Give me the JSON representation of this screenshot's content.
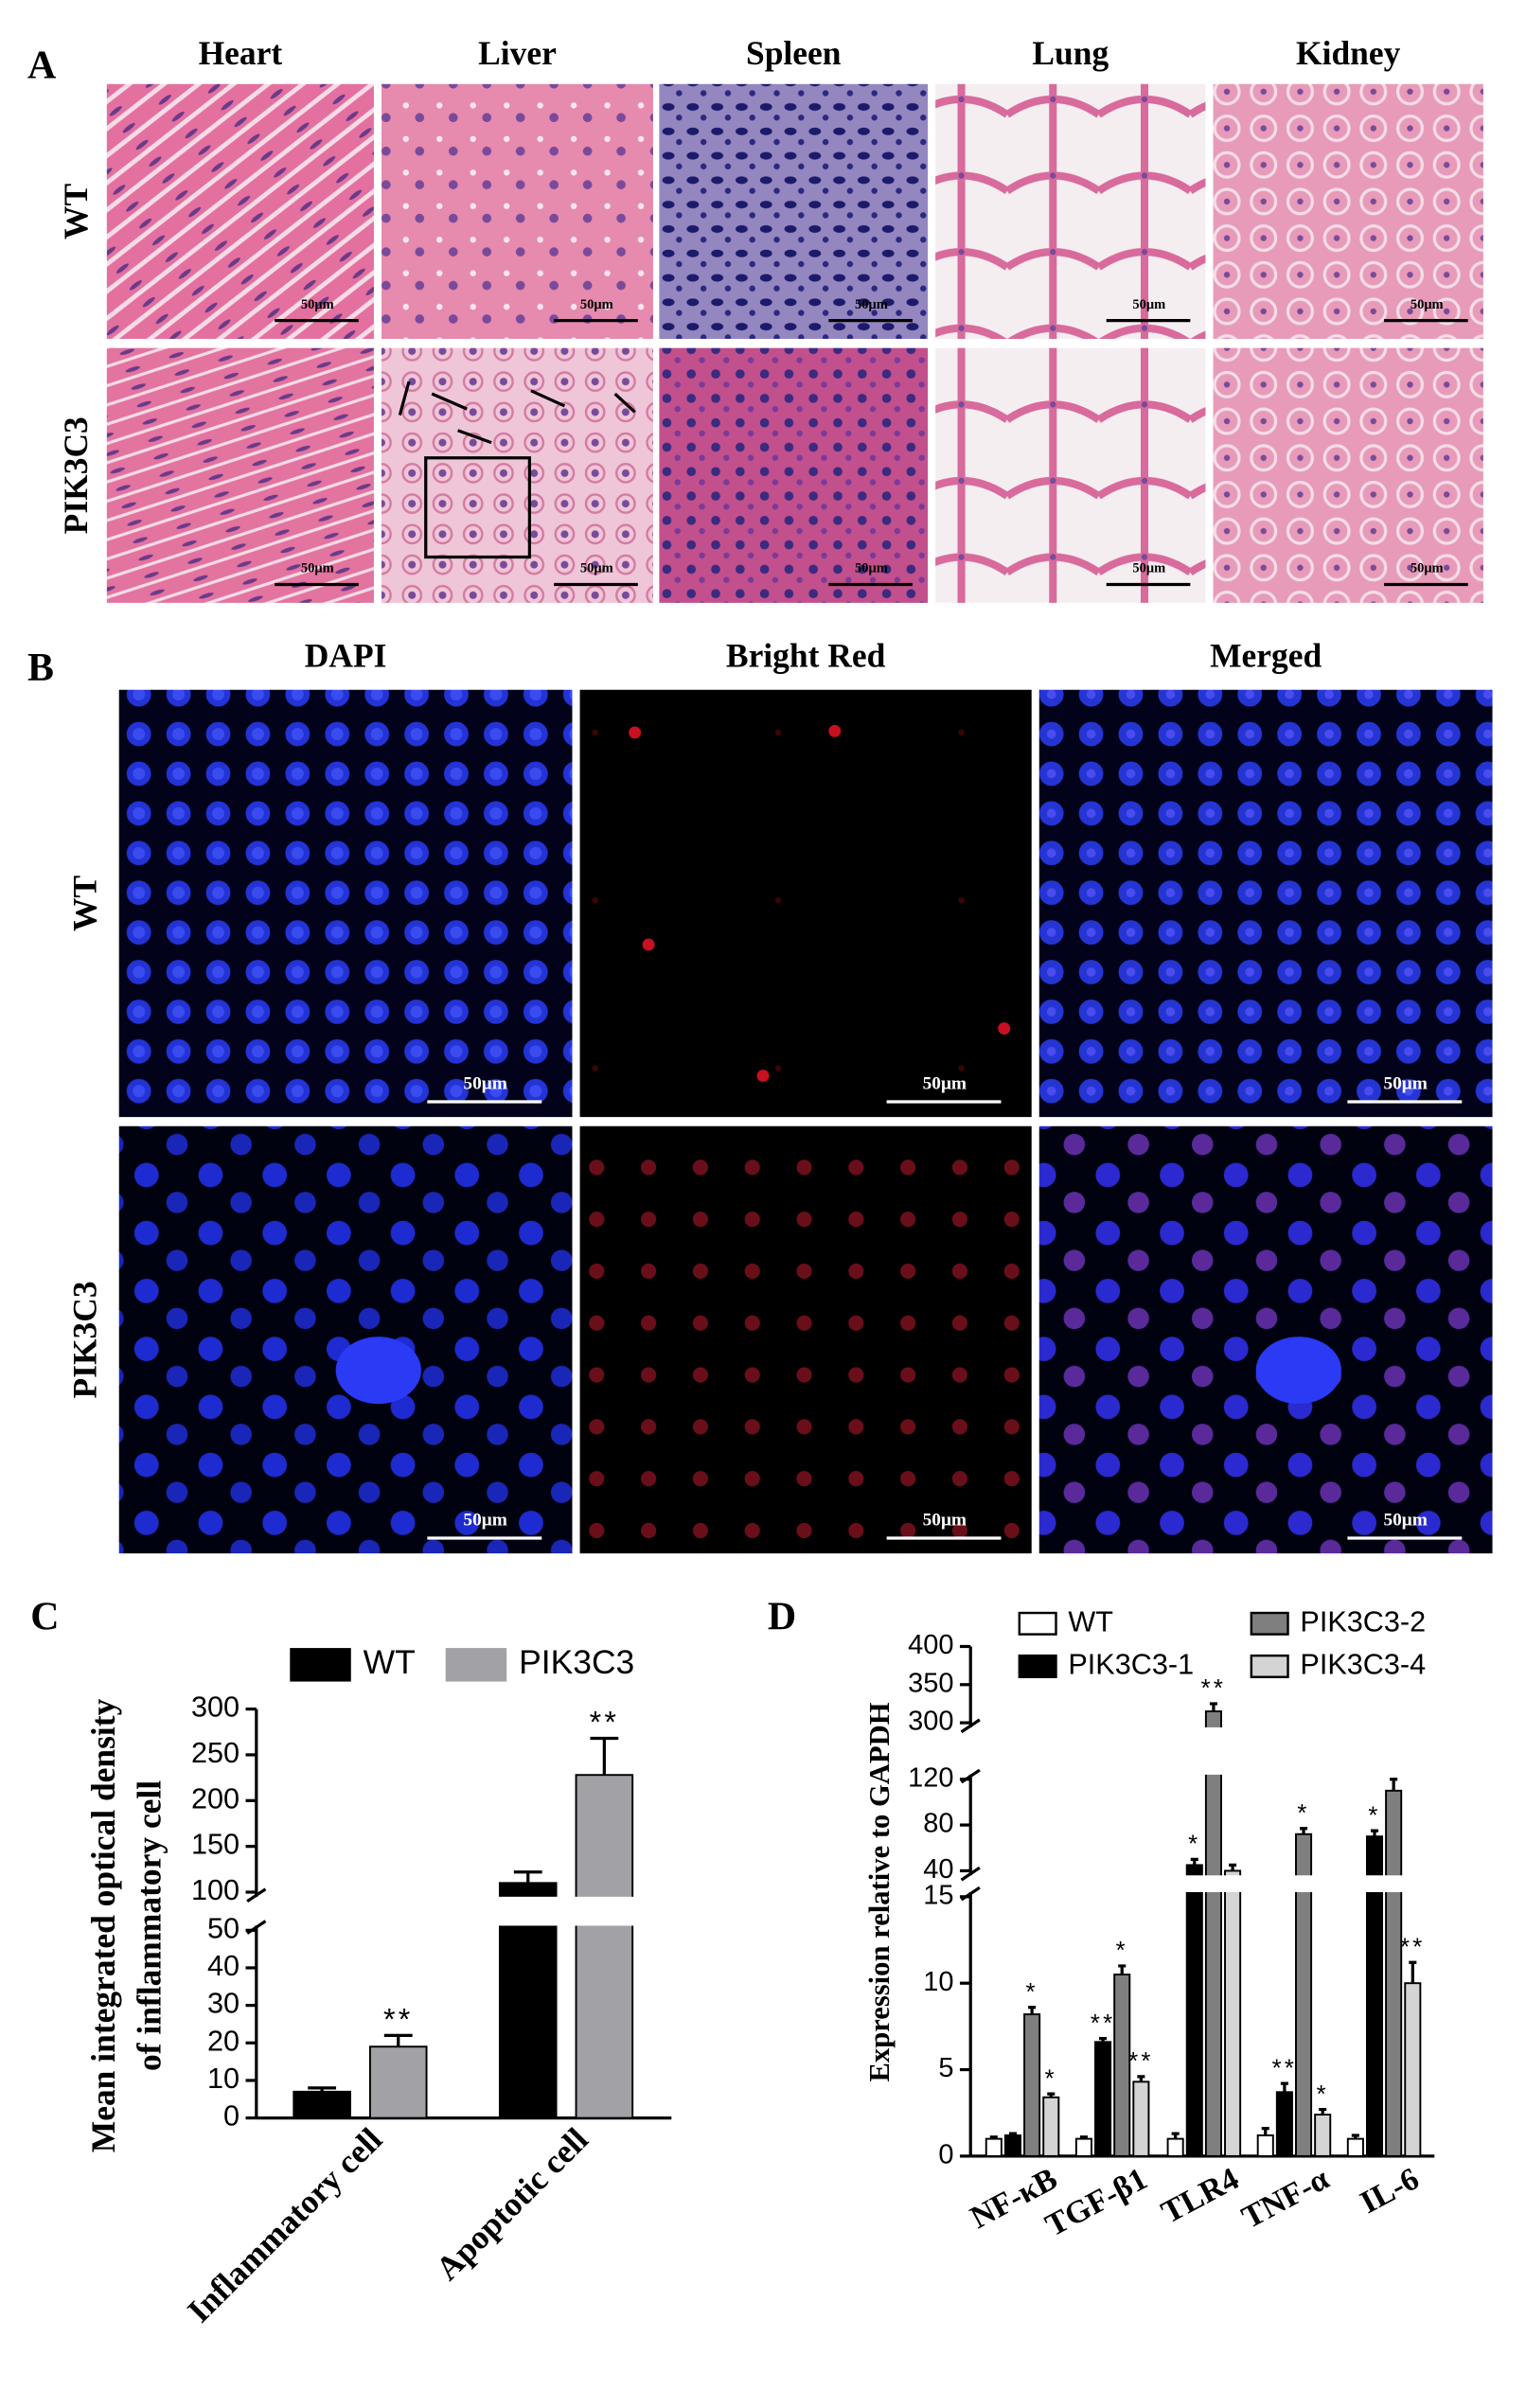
{
  "figure": {
    "panel_a": {
      "label": "A",
      "columns": [
        "Heart",
        "Liver",
        "Spleen",
        "Lung",
        "Kidney"
      ],
      "rows": [
        "WT",
        "PIK3C3"
      ],
      "scale_bar": "50μm"
    },
    "panel_b": {
      "label": "B",
      "columns": [
        "DAPI",
        "Bright Red",
        "Merged"
      ],
      "rows": [
        "WT",
        "PIK3C3"
      ],
      "scale_bar": "50μm"
    }
  },
  "chart_data": [
    {
      "type": "bar",
      "panel_label": "C",
      "y_label": [
        "Mean integrated optical density",
        "of inflammatory cell"
      ],
      "categories": [
        "Inflammatory cell",
        "Apoptotic cell"
      ],
      "series": [
        {
          "name": "WT",
          "color": "#000000",
          "values": [
            7,
            110
          ],
          "errors": [
            1,
            12
          ]
        },
        {
          "name": "PIK3C3",
          "color": "#a2a2a6",
          "values": [
            19,
            228
          ],
          "errors": [
            3,
            40
          ],
          "significance": [
            "**",
            "**"
          ]
        }
      ],
      "ylim": [
        0,
        300
      ],
      "axis_breaks": [
        [
          50,
          100
        ]
      ],
      "yticks": [
        0,
        10,
        20,
        30,
        40,
        50,
        100,
        150,
        200,
        250,
        300
      ],
      "legend": "top"
    },
    {
      "type": "bar",
      "panel_label": "D",
      "y_label": "Expression relative to GAPDH",
      "categories": [
        "NF-κB",
        "TGF-β1",
        "TLR4",
        "TNF-α",
        "IL-6"
      ],
      "series": [
        {
          "name": "WT",
          "color": "#ffffff",
          "values": [
            1,
            1,
            1,
            1.2,
            1
          ],
          "errors": [
            0.1,
            0.1,
            0.3,
            0.4,
            0.2
          ]
        },
        {
          "name": "PIK3C3-1",
          "color": "#000000",
          "values": [
            1.2,
            6.6,
            45,
            3.7,
            70
          ],
          "errors": [
            0.1,
            0.2,
            5,
            0.5,
            5
          ],
          "significance": [
            null,
            "**",
            "*",
            "**",
            "*"
          ]
        },
        {
          "name": "PIK3C3-2",
          "color": "#7f7f7f",
          "values": [
            8.2,
            10.5,
            315,
            72,
            110
          ],
          "errors": [
            0.4,
            0.5,
            10,
            5,
            12
          ],
          "significance": [
            "*",
            "*",
            "**",
            "*",
            null
          ]
        },
        {
          "name": "PIK3C3-4",
          "color": "#d4d4d4",
          "values": [
            3.4,
            4.3,
            40,
            2.4,
            10
          ],
          "errors": [
            0.2,
            0.3,
            5,
            0.3,
            1.2
          ],
          "significance": [
            "*",
            "**",
            null,
            "*",
            "**"
          ]
        }
      ],
      "ylim": [
        0,
        400
      ],
      "axis_breaks": [
        [
          15,
          40
        ],
        [
          120,
          300
        ]
      ],
      "yticks": [
        0,
        5,
        10,
        15,
        40,
        80,
        120,
        300,
        350,
        400
      ],
      "legend": "top"
    }
  ]
}
